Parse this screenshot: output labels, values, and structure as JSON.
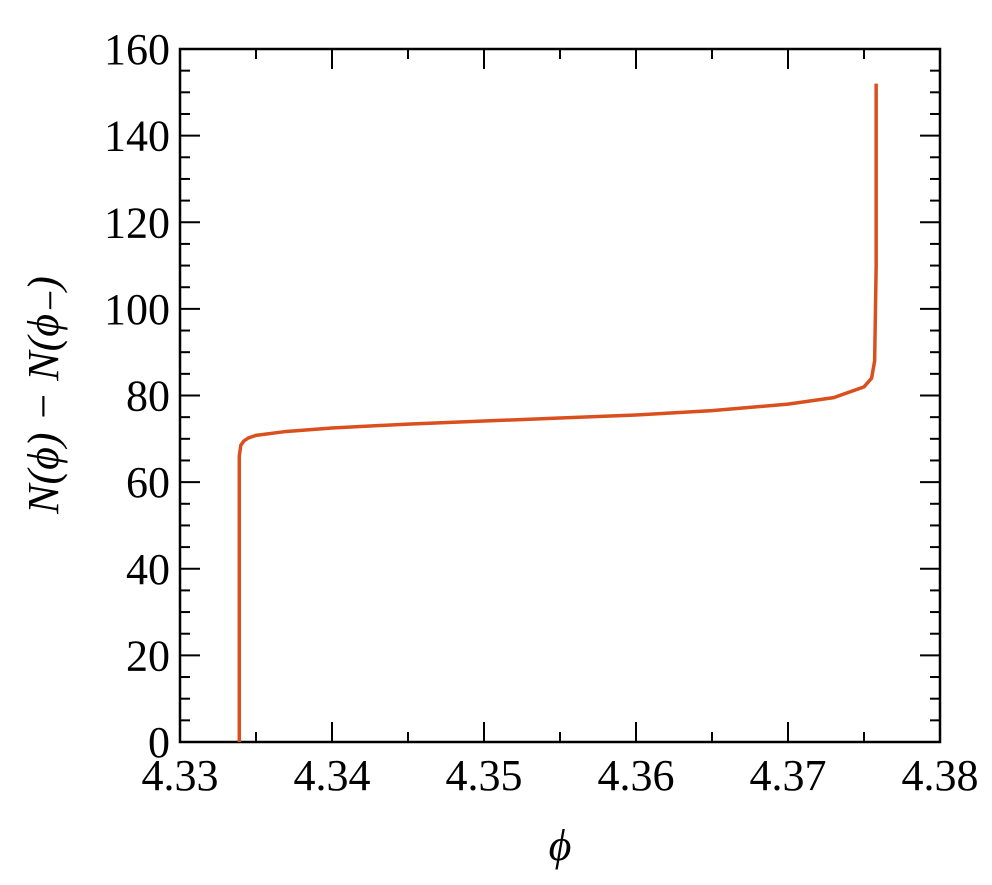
{
  "chart_data": {
    "type": "line",
    "xlabel": "ϕ",
    "ylabel": "N(ϕ) − N(ϕ₋)",
    "x": [
      4.3339,
      4.3339,
      4.3339,
      4.334,
      4.3342,
      4.3345,
      4.335,
      4.337,
      4.34,
      4.345,
      4.35,
      4.355,
      4.36,
      4.365,
      4.37,
      4.373,
      4.375,
      4.3755,
      4.3757,
      4.3758,
      4.3758
    ],
    "y": [
      0,
      40,
      66,
      68.5,
      69.5,
      70.2,
      70.8,
      71.7,
      72.5,
      73.4,
      74.1,
      74.8,
      75.5,
      76.5,
      78,
      79.5,
      82,
      84,
      88,
      110,
      152
    ],
    "color": "#d9501e",
    "xlim": [
      4.33,
      4.38
    ],
    "xticks": [
      4.33,
      4.34,
      4.35,
      4.36,
      4.37,
      4.38
    ],
    "xminorticks": [
      4.335,
      4.345,
      4.355,
      4.365,
      4.375
    ],
    "ylim": [
      0,
      160
    ],
    "yticks": [
      0,
      20,
      40,
      60,
      80,
      100,
      120,
      140,
      160
    ],
    "yminorticks": [
      5,
      10,
      15,
      25,
      30,
      35,
      45,
      50,
      55,
      65,
      70,
      75,
      85,
      90,
      95,
      105,
      110,
      115,
      125,
      130,
      135,
      145,
      150,
      155
    ]
  }
}
